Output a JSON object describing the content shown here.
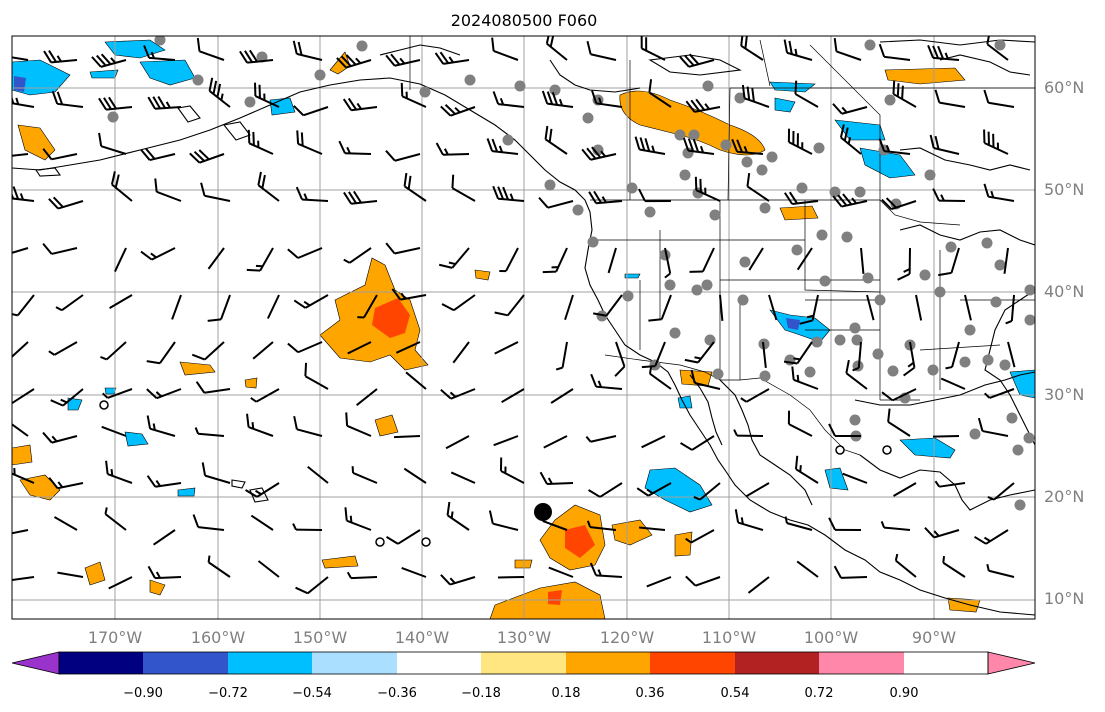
{
  "title": "2024080500 F060",
  "lon_labels": [
    "170°W",
    "160°W",
    "150°W",
    "140°W",
    "130°W",
    "120°W",
    "110°W",
    "100°W",
    "90°W"
  ],
  "lat_labels": [
    "60°N",
    "50°N",
    "40°N",
    "30°N",
    "20°N",
    "10°N"
  ],
  "colorbar": {
    "ticks": [
      "−0.90",
      "−0.72",
      "−0.54",
      "−0.36",
      "−0.18",
      "0.18",
      "0.36",
      "0.54",
      "0.72",
      "0.90"
    ],
    "colors": [
      "#9933cc",
      "#000080",
      "#3355cc",
      "#00bfff",
      "#aadfff",
      "#ffffff",
      "#ffe680",
      "#ffa500",
      "#ff4500",
      "#b22222",
      "#ff88aa"
    ]
  },
  "colors": {
    "positive_strong": "#ff4500",
    "positive": "#ffa500",
    "positive_weak": "#ffe680",
    "negative": "#00bfff",
    "negative_weak": "#aadfff",
    "station": "#808080",
    "grid": "#a0a0a0"
  }
}
